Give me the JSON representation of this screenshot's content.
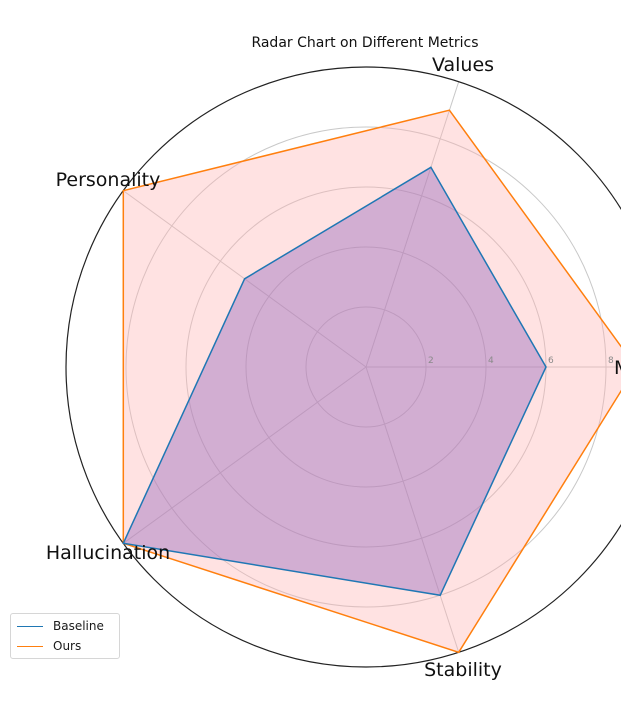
{
  "chart_data": {
    "type": "radar",
    "title": "Radar Chart on Different Metrics",
    "categories": [
      "M",
      "Values",
      "Personality",
      "Hallucination",
      "Stability"
    ],
    "rlim": [
      0,
      10
    ],
    "r_ticks": [
      "2",
      "4",
      "6",
      "8"
    ],
    "grid": true,
    "legend_position": "lower-left",
    "series": [
      {
        "name": "Baseline",
        "values": [
          6,
          7,
          5,
          10,
          8
        ],
        "color": "#1f77b4",
        "fill": "#9467bd"
      },
      {
        "name": "Ours",
        "values": [
          9,
          9,
          10,
          10,
          10
        ],
        "color": "#ff7f0e",
        "fill": "#ffb3b3"
      }
    ]
  }
}
